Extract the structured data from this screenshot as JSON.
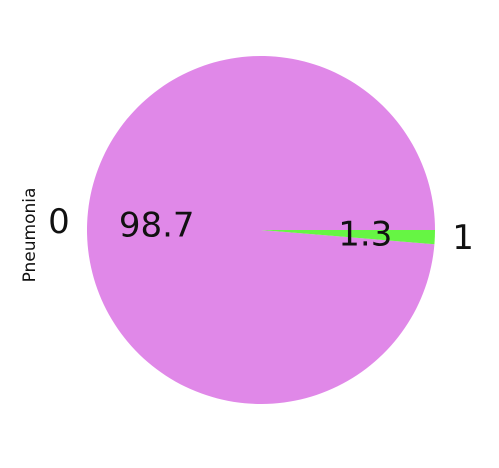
{
  "chart_data": {
    "type": "pie",
    "ylabel": "Pneumonia",
    "categories": [
      "0",
      "1"
    ],
    "values": [
      98.7,
      1.3
    ],
    "autopct_labels": [
      "98.7",
      "1.3"
    ],
    "colors": [
      "#e088e8",
      "#66f544"
    ],
    "start_angle": 0,
    "direction": "counterclockwise"
  }
}
